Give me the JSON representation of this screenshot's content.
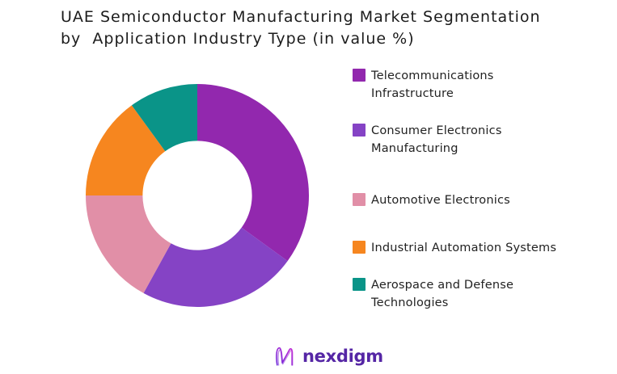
{
  "title": {
    "line1": "UAE Semiconductor Manufacturing Market Segmentation",
    "line2": "by  Application Industry Type (in value %)"
  },
  "chart_data": {
    "type": "pie",
    "subtype": "donut",
    "title": "UAE Semiconductor Manufacturing Market Segmentation by Application Industry Type (in value %)",
    "labels": [
      "Telecommunications Infrastructure",
      "Consumer Electronics Manufacturing",
      "Automotive Electronics",
      "Industrial Automation Systems",
      "Aerospace and Defense Technologies"
    ],
    "values": [
      35,
      23,
      17,
      15,
      10
    ],
    "unit": "percent",
    "colors": [
      "#9228AE",
      "#8543C5",
      "#E18FA7",
      "#F6861F",
      "#0A9488"
    ],
    "start_angle_deg": 0,
    "direction": "clockwise",
    "inner_radius_ratio": 0.49,
    "legend_position": "right",
    "data_labels_shown": false,
    "background": "#FFFFFF"
  },
  "legend": {
    "items": [
      {
        "line1": "Telecommunications",
        "line2": "Infrastructure",
        "color": "#9228AE"
      },
      {
        "line1": "Consumer Electronics",
        "line2": "Manufacturing",
        "color": "#8543C5"
      },
      {
        "line1": "Automotive Electronics",
        "line2": "",
        "color": "#E18FA7"
      },
      {
        "line1": "Industrial Automation Systems",
        "line2": "",
        "color": "#F6861F"
      },
      {
        "line1": "Aerospace and Defense",
        "line2": "Technologies",
        "color": "#0A9488"
      }
    ]
  },
  "footer": {
    "brand_name": "nexdigm",
    "brand_text_color": "#5526A5",
    "logo_gradient_start": "#6D28D9",
    "logo_gradient_end": "#C026D3"
  }
}
